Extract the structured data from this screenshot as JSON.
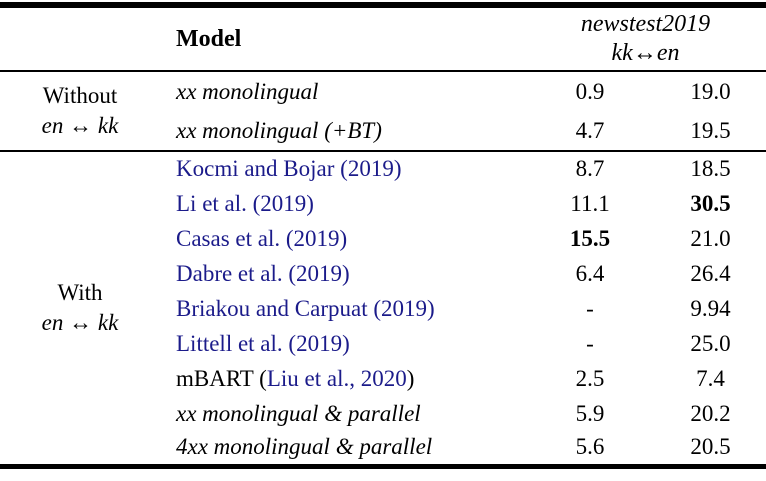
{
  "table": {
    "header": {
      "model_label": "Model",
      "benchmark_line1": "newstest2019",
      "benchmark_line2": "kk↔en"
    },
    "groups": [
      {
        "label_line1": "Without",
        "label_line2": "en ↔ kk",
        "rows": [
          {
            "parts": [
              {
                "text": "xx monolingual",
                "style": "italic"
              }
            ],
            "s1": "0.9",
            "s1_bold": false,
            "s2": "19.0",
            "s2_bold": false
          },
          {
            "parts": [
              {
                "text": "xx monolingual (+BT)",
                "style": "italic"
              }
            ],
            "s1": "4.7",
            "s1_bold": false,
            "s2": "19.5",
            "s2_bold": false
          }
        ]
      },
      {
        "label_line1": "With",
        "label_line2": "en ↔ kk",
        "rows": [
          {
            "parts": [
              {
                "text": "Kocmi and Bojar (2019)",
                "style": "cite"
              }
            ],
            "s1": "8.7",
            "s1_bold": false,
            "s2": "18.5",
            "s2_bold": false
          },
          {
            "parts": [
              {
                "text": "Li et al. (2019)",
                "style": "cite"
              }
            ],
            "s1": "11.1",
            "s1_bold": false,
            "s2": "30.5",
            "s2_bold": true
          },
          {
            "parts": [
              {
                "text": "Casas et al. (2019)",
                "style": "cite"
              }
            ],
            "s1": "15.5",
            "s1_bold": true,
            "s2": "21.0",
            "s2_bold": false
          },
          {
            "parts": [
              {
                "text": "Dabre et al. (2019)",
                "style": "cite"
              }
            ],
            "s1": "6.4",
            "s1_bold": false,
            "s2": "26.4",
            "s2_bold": false
          },
          {
            "parts": [
              {
                "text": "Briakou and Carpuat (2019)",
                "style": "cite"
              }
            ],
            "s1": "-",
            "s1_bold": false,
            "s2": "9.94",
            "s2_bold": false
          },
          {
            "parts": [
              {
                "text": "Littell et al. (2019)",
                "style": "cite"
              }
            ],
            "s1": "-",
            "s1_bold": false,
            "s2": "25.0",
            "s2_bold": false
          },
          {
            "parts": [
              {
                "text": "mBART (",
                "style": "plain"
              },
              {
                "text": "Liu et al., 2020",
                "style": "cite"
              },
              {
                "text": ")",
                "style": "plain"
              }
            ],
            "s1": "2.5",
            "s1_bold": false,
            "s2": "7.4",
            "s2_bold": false
          },
          {
            "parts": [
              {
                "text": "xx monolingual & parallel",
                "style": "italic"
              }
            ],
            "s1": "5.9",
            "s1_bold": false,
            "s2": "20.2",
            "s2_bold": false
          },
          {
            "parts": [
              {
                "text": "4xx monolingual & parallel",
                "style": "italic"
              }
            ],
            "s1": "5.6",
            "s1_bold": false,
            "s2": "20.5",
            "s2_bold": false
          }
        ]
      }
    ],
    "colors": {
      "citation": "#1b1b8a",
      "text": "#000000",
      "rule": "#000000",
      "background": "#ffffff"
    }
  }
}
